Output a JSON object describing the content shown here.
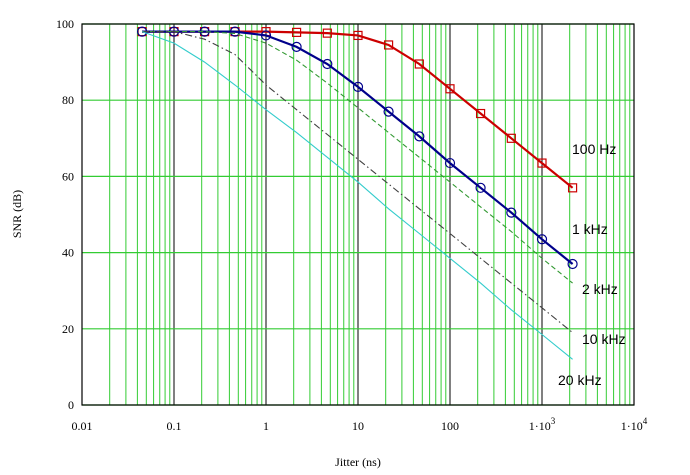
{
  "chart_data": {
    "type": "line",
    "xlabel": "Jitter (ns)",
    "ylabel": "SNR (dB)",
    "x_scale": "log",
    "xlim": [
      0.01,
      10000
    ],
    "ylim": [
      0,
      100
    ],
    "grid": true,
    "x_ticks": [
      {
        "value": 0.01,
        "label": "0.01"
      },
      {
        "value": 0.1,
        "label": "0.1"
      },
      {
        "value": 1,
        "label": "1"
      },
      {
        "value": 10,
        "label": "10"
      },
      {
        "value": 100,
        "label": "100"
      },
      {
        "value": 1000,
        "label": "1·10",
        "sup": "3"
      },
      {
        "value": 10000,
        "label": "1·10",
        "sup": "4"
      }
    ],
    "y_ticks": [
      {
        "value": 0,
        "label": "0"
      },
      {
        "value": 20,
        "label": "20"
      },
      {
        "value": 40,
        "label": "40"
      },
      {
        "value": 60,
        "label": "60"
      },
      {
        "value": 80,
        "label": "80"
      },
      {
        "value": 100,
        "label": "100"
      }
    ],
    "series": [
      {
        "name": "100 Hz",
        "color": "#cc0000",
        "dash": "solid",
        "marker": "square",
        "x": [
          0.045,
          0.1,
          0.215,
          0.46,
          1,
          2.15,
          4.64,
          10,
          21.5,
          46.4,
          100,
          215,
          464,
          1000,
          2150
        ],
        "y": [
          98,
          98,
          98,
          98,
          98,
          97.8,
          97.6,
          97,
          94.5,
          89.5,
          83,
          76.5,
          70,
          63.5,
          57
        ]
      },
      {
        "name": "1 kHz",
        "color": "#00008b",
        "dash": "solid",
        "marker": "circle",
        "x": [
          0.045,
          0.1,
          0.215,
          0.46,
          1,
          2.15,
          4.64,
          10,
          21.5,
          46.4,
          100,
          215,
          464,
          1000,
          2150
        ],
        "y": [
          98,
          98,
          98,
          98,
          97,
          94,
          89.5,
          83.5,
          77,
          70.5,
          63.5,
          57,
          50.5,
          43.5,
          37
        ]
      },
      {
        "name": "2 kHz",
        "color": "#339933",
        "dash": "dashed",
        "marker": "none",
        "x": [
          0.045,
          0.1,
          0.215,
          0.46,
          1,
          2.15,
          4.64,
          10,
          21.5,
          46.4,
          100,
          215,
          464,
          1000,
          2150
        ],
        "y": [
          98,
          98,
          98,
          97.5,
          95,
          90.5,
          84.5,
          78,
          71.5,
          65,
          58.5,
          52,
          45.5,
          38.5,
          32
        ]
      },
      {
        "name": "10 kHz",
        "color": "#404040",
        "dash": "dashdot",
        "marker": "none",
        "x": [
          0.045,
          0.1,
          0.215,
          0.46,
          1,
          2.15,
          4.64,
          10,
          21.5,
          46.4,
          100,
          215,
          464,
          1000,
          2150
        ],
        "y": [
          98,
          98,
          96,
          92,
          84,
          77.5,
          71,
          64.5,
          58,
          51.5,
          45,
          38.5,
          32,
          25.5,
          19
        ]
      },
      {
        "name": "20 kHz",
        "color": "#33cccc",
        "dash": "solid",
        "marker": "none",
        "x": [
          0.045,
          0.1,
          0.215,
          0.46,
          1,
          2.15,
          4.64,
          10,
          21.5,
          46.4,
          100,
          215,
          464,
          1000,
          2150
        ],
        "y": [
          98,
          95,
          90,
          84,
          77.5,
          71.5,
          65,
          58.5,
          51.5,
          45,
          38.5,
          32,
          25,
          18.5,
          12
        ]
      }
    ]
  }
}
